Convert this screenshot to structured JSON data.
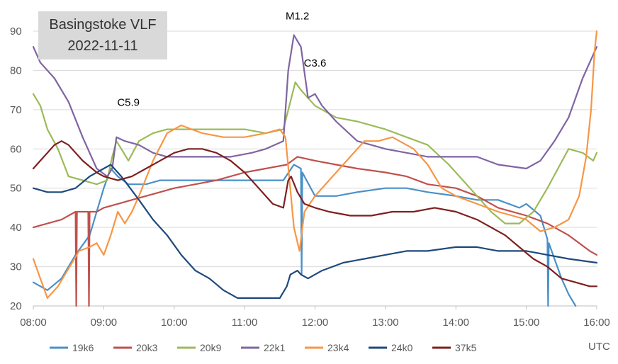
{
  "chart_data": {
    "type": "line",
    "title": "Basingstoke VLF",
    "subtitle": "2022-11-11",
    "xlabel": "UTC",
    "ylabel": "",
    "xlim": [
      8,
      16
    ],
    "ylim": [
      20,
      90
    ],
    "x_ticks": [
      "08:00",
      "09:00",
      "10:00",
      "11:00",
      "12:00",
      "13:00",
      "14:00",
      "15:00",
      "16:00"
    ],
    "y_ticks": [
      20,
      30,
      40,
      50,
      60,
      70,
      80,
      90
    ],
    "grid": "horizontal",
    "legend_position": "bottom",
    "annotations": [
      {
        "text": "C5.9",
        "x": 9.35,
        "y": 71
      },
      {
        "text": "M1.2",
        "x": 11.75,
        "y": 93
      },
      {
        "text": "C3.6",
        "x": 12.0,
        "y": 81
      }
    ],
    "series": [
      {
        "name": "19k6",
        "color": "#4a90c8",
        "points": [
          [
            8.0,
            26
          ],
          [
            8.2,
            24
          ],
          [
            8.4,
            27
          ],
          [
            8.6,
            33
          ],
          [
            8.8,
            38
          ],
          [
            9.0,
            50
          ],
          [
            9.1,
            55
          ],
          [
            9.2,
            53
          ],
          [
            9.35,
            51
          ],
          [
            9.6,
            51
          ],
          [
            9.8,
            52
          ],
          [
            10.0,
            52
          ],
          [
            10.3,
            52
          ],
          [
            10.6,
            52
          ],
          [
            11.0,
            52
          ],
          [
            11.3,
            52
          ],
          [
            11.55,
            52
          ],
          [
            11.7,
            56
          ],
          [
            11.8,
            55
          ],
          [
            11.81,
            28
          ],
          [
            11.82,
            54
          ],
          [
            12.0,
            48
          ],
          [
            12.3,
            48
          ],
          [
            12.6,
            49
          ],
          [
            13.0,
            50
          ],
          [
            13.3,
            50
          ],
          [
            13.6,
            49
          ],
          [
            14.0,
            48
          ],
          [
            14.3,
            47
          ],
          [
            14.6,
            47
          ],
          [
            14.9,
            45
          ],
          [
            15.0,
            46
          ],
          [
            15.2,
            43
          ],
          [
            15.3,
            37
          ],
          [
            15.31,
            20
          ],
          [
            15.32,
            36
          ],
          [
            15.5,
            27
          ],
          [
            15.6,
            23
          ],
          [
            15.7,
            20
          ]
        ]
      },
      {
        "name": "20k3",
        "color": "#c0504d",
        "points": [
          [
            8.0,
            40
          ],
          [
            8.2,
            41
          ],
          [
            8.4,
            42
          ],
          [
            8.6,
            44
          ],
          [
            8.61,
            20
          ],
          [
            8.62,
            44
          ],
          [
            8.7,
            44
          ],
          [
            8.78,
            44
          ],
          [
            8.79,
            20
          ],
          [
            8.8,
            44
          ],
          [
            8.9,
            44
          ],
          [
            9.0,
            45
          ],
          [
            9.2,
            46
          ],
          [
            9.4,
            47
          ],
          [
            9.6,
            48
          ],
          [
            9.8,
            49
          ],
          [
            10.0,
            50
          ],
          [
            10.3,
            51
          ],
          [
            10.6,
            52
          ],
          [
            11.0,
            54
          ],
          [
            11.3,
            55
          ],
          [
            11.6,
            56
          ],
          [
            11.75,
            58
          ],
          [
            12.0,
            57
          ],
          [
            12.3,
            56
          ],
          [
            12.6,
            55
          ],
          [
            13.0,
            54
          ],
          [
            13.3,
            53
          ],
          [
            13.6,
            51
          ],
          [
            14.0,
            50
          ],
          [
            14.3,
            48
          ],
          [
            14.6,
            45
          ],
          [
            15.0,
            43
          ],
          [
            15.3,
            41
          ],
          [
            15.6,
            38
          ],
          [
            15.9,
            34
          ],
          [
            16.0,
            33
          ]
        ]
      },
      {
        "name": "20k9",
        "color": "#9bbb59",
        "points": [
          [
            8.0,
            74
          ],
          [
            8.1,
            71
          ],
          [
            8.2,
            65
          ],
          [
            8.35,
            60
          ],
          [
            8.5,
            53
          ],
          [
            8.7,
            52
          ],
          [
            8.9,
            51
          ],
          [
            9.05,
            52
          ],
          [
            9.12,
            58
          ],
          [
            9.18,
            62
          ],
          [
            9.25,
            60
          ],
          [
            9.35,
            57
          ],
          [
            9.5,
            62
          ],
          [
            9.7,
            64
          ],
          [
            9.9,
            65
          ],
          [
            10.1,
            65
          ],
          [
            10.4,
            65
          ],
          [
            10.7,
            65
          ],
          [
            11.0,
            65
          ],
          [
            11.3,
            64
          ],
          [
            11.55,
            65
          ],
          [
            11.65,
            72
          ],
          [
            11.72,
            77
          ],
          [
            11.8,
            75
          ],
          [
            12.0,
            71
          ],
          [
            12.3,
            68
          ],
          [
            12.6,
            67
          ],
          [
            13.0,
            65
          ],
          [
            13.3,
            63
          ],
          [
            13.6,
            61
          ],
          [
            13.9,
            56
          ],
          [
            14.1,
            52
          ],
          [
            14.3,
            48
          ],
          [
            14.5,
            44
          ],
          [
            14.7,
            41
          ],
          [
            14.9,
            41
          ],
          [
            15.1,
            44
          ],
          [
            15.3,
            50
          ],
          [
            15.45,
            55
          ],
          [
            15.6,
            60
          ],
          [
            15.8,
            59
          ],
          [
            15.95,
            57
          ],
          [
            16.0,
            59
          ]
        ]
      },
      {
        "name": "22k1",
        "color": "#8064a2",
        "points": [
          [
            8.0,
            86
          ],
          [
            8.1,
            82
          ],
          [
            8.3,
            78
          ],
          [
            8.5,
            72
          ],
          [
            8.7,
            63
          ],
          [
            8.9,
            55
          ],
          [
            9.05,
            53
          ],
          [
            9.12,
            55
          ],
          [
            9.18,
            63
          ],
          [
            9.3,
            62
          ],
          [
            9.5,
            61
          ],
          [
            9.7,
            59
          ],
          [
            9.9,
            58
          ],
          [
            10.2,
            58
          ],
          [
            10.5,
            58
          ],
          [
            10.8,
            58
          ],
          [
            11.1,
            59
          ],
          [
            11.3,
            60
          ],
          [
            11.55,
            62
          ],
          [
            11.62,
            80
          ],
          [
            11.7,
            89
          ],
          [
            11.8,
            86
          ],
          [
            11.9,
            73
          ],
          [
            12.0,
            74
          ],
          [
            12.1,
            71
          ],
          [
            12.3,
            67
          ],
          [
            12.6,
            62
          ],
          [
            13.0,
            60
          ],
          [
            13.3,
            59
          ],
          [
            13.6,
            58
          ],
          [
            14.0,
            58
          ],
          [
            14.3,
            58
          ],
          [
            14.6,
            56
          ],
          [
            15.0,
            55
          ],
          [
            15.2,
            57
          ],
          [
            15.4,
            62
          ],
          [
            15.6,
            68
          ],
          [
            15.8,
            78
          ],
          [
            16.0,
            86
          ]
        ]
      },
      {
        "name": "23k4",
        "color": "#f79646",
        "points": [
          [
            8.0,
            32
          ],
          [
            8.1,
            27
          ],
          [
            8.2,
            22
          ],
          [
            8.35,
            25
          ],
          [
            8.45,
            28
          ],
          [
            8.55,
            31
          ],
          [
            8.65,
            34
          ],
          [
            8.8,
            35
          ],
          [
            8.9,
            36
          ],
          [
            9.0,
            33
          ],
          [
            9.1,
            38
          ],
          [
            9.2,
            44
          ],
          [
            9.3,
            41
          ],
          [
            9.4,
            44
          ],
          [
            9.5,
            48
          ],
          [
            9.7,
            57
          ],
          [
            9.9,
            64
          ],
          [
            10.1,
            66
          ],
          [
            10.4,
            64
          ],
          [
            10.7,
            63
          ],
          [
            11.0,
            63
          ],
          [
            11.3,
            64
          ],
          [
            11.5,
            65
          ],
          [
            11.58,
            63
          ],
          [
            11.7,
            40
          ],
          [
            11.78,
            34
          ],
          [
            11.85,
            44
          ],
          [
            12.0,
            48
          ],
          [
            12.2,
            52
          ],
          [
            12.5,
            58
          ],
          [
            12.7,
            62
          ],
          [
            12.9,
            62
          ],
          [
            13.1,
            63
          ],
          [
            13.4,
            60
          ],
          [
            13.6,
            56
          ],
          [
            13.8,
            50
          ],
          [
            14.0,
            48
          ],
          [
            14.3,
            46
          ],
          [
            14.6,
            44
          ],
          [
            14.8,
            43
          ],
          [
            15.0,
            42
          ],
          [
            15.2,
            39
          ],
          [
            15.4,
            40
          ],
          [
            15.6,
            42
          ],
          [
            15.75,
            48
          ],
          [
            15.85,
            58
          ],
          [
            15.92,
            70
          ],
          [
            15.97,
            85
          ],
          [
            16.0,
            90
          ]
        ]
      },
      {
        "name": "24k0",
        "color": "#1f497d",
        "points": [
          [
            8.0,
            50
          ],
          [
            8.2,
            49
          ],
          [
            8.4,
            49
          ],
          [
            8.6,
            50
          ],
          [
            8.8,
            53
          ],
          [
            9.0,
            55
          ],
          [
            9.1,
            56
          ],
          [
            9.25,
            53
          ],
          [
            9.5,
            47
          ],
          [
            9.7,
            42
          ],
          [
            9.9,
            38
          ],
          [
            10.1,
            33
          ],
          [
            10.3,
            29
          ],
          [
            10.5,
            27
          ],
          [
            10.7,
            24
          ],
          [
            10.9,
            22
          ],
          [
            11.1,
            22
          ],
          [
            11.3,
            22
          ],
          [
            11.5,
            22
          ],
          [
            11.6,
            25
          ],
          [
            11.65,
            28
          ],
          [
            11.75,
            29
          ],
          [
            11.8,
            28
          ],
          [
            11.9,
            27
          ],
          [
            12.1,
            29
          ],
          [
            12.4,
            31
          ],
          [
            12.7,
            32
          ],
          [
            13.0,
            33
          ],
          [
            13.3,
            34
          ],
          [
            13.6,
            34
          ],
          [
            14.0,
            35
          ],
          [
            14.3,
            35
          ],
          [
            14.6,
            34
          ],
          [
            15.0,
            34
          ],
          [
            15.3,
            33
          ],
          [
            15.6,
            32
          ],
          [
            16.0,
            31
          ]
        ]
      },
      {
        "name": "37k5",
        "color": "#7f1f1f",
        "points": [
          [
            8.0,
            55
          ],
          [
            8.1,
            57
          ],
          [
            8.2,
            59
          ],
          [
            8.3,
            61
          ],
          [
            8.4,
            62
          ],
          [
            8.5,
            61
          ],
          [
            8.7,
            57
          ],
          [
            8.9,
            54
          ],
          [
            9.0,
            53
          ],
          [
            9.2,
            52
          ],
          [
            9.4,
            53
          ],
          [
            9.6,
            55
          ],
          [
            9.8,
            57
          ],
          [
            10.0,
            59
          ],
          [
            10.2,
            60
          ],
          [
            10.4,
            60
          ],
          [
            10.6,
            59
          ],
          [
            10.8,
            57
          ],
          [
            11.0,
            54
          ],
          [
            11.2,
            50
          ],
          [
            11.4,
            46
          ],
          [
            11.55,
            45
          ],
          [
            11.62,
            52
          ],
          [
            11.66,
            53
          ],
          [
            11.75,
            49
          ],
          [
            11.85,
            46
          ],
          [
            12.0,
            45
          ],
          [
            12.2,
            44
          ],
          [
            12.5,
            43
          ],
          [
            12.8,
            43
          ],
          [
            13.1,
            44
          ],
          [
            13.4,
            44
          ],
          [
            13.7,
            45
          ],
          [
            14.0,
            44
          ],
          [
            14.3,
            42
          ],
          [
            14.5,
            40
          ],
          [
            14.7,
            38
          ],
          [
            14.9,
            35
          ],
          [
            15.1,
            32
          ],
          [
            15.3,
            30
          ],
          [
            15.5,
            27
          ],
          [
            15.7,
            26
          ],
          [
            15.9,
            25
          ],
          [
            16.0,
            25
          ]
        ]
      }
    ]
  }
}
